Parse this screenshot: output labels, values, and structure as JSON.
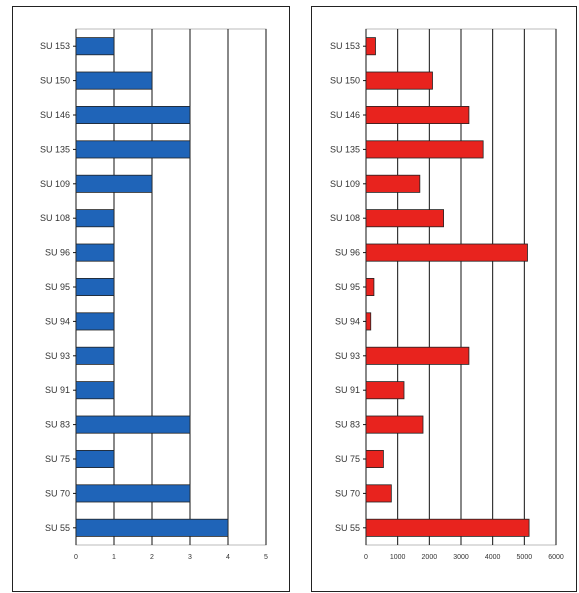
{
  "chart_data": [
    {
      "type": "bar",
      "orientation": "horizontal",
      "categories": [
        "SU 153",
        "SU 150",
        "SU 146",
        "SU 135",
        "SU 109",
        "SU 108",
        "SU 96",
        "SU 95",
        "SU 94",
        "SU 93",
        "SU 91",
        "SU 83",
        "SU 75",
        "SU 70",
        "SU 55"
      ],
      "values": [
        1,
        2,
        3,
        3,
        2,
        1,
        1,
        1,
        1,
        1,
        1,
        3,
        1,
        3,
        4
      ],
      "xlim": [
        0,
        5
      ],
      "xticks": [
        "0",
        "1",
        "2",
        "3",
        "4",
        "5"
      ],
      "color": "#1f64b8",
      "grid": true
    },
    {
      "type": "bar",
      "orientation": "horizontal",
      "categories": [
        "SU 153",
        "SU 150",
        "SU 146",
        "SU 135",
        "SU 109",
        "SU 108",
        "SU 96",
        "SU 95",
        "SU 94",
        "SU 93",
        "SU 91",
        "SU 83",
        "SU 75",
        "SU 70",
        "SU 55"
      ],
      "values": [
        300,
        2100,
        3250,
        3700,
        1700,
        2450,
        5100,
        250,
        150,
        3250,
        1200,
        1800,
        550,
        800,
        5150
      ],
      "xlim": [
        0,
        6000
      ],
      "xticks": [
        "0",
        "1000",
        "2000",
        "3000",
        "4000",
        "5000",
        "6000"
      ],
      "color": "#e8231e",
      "grid": true
    }
  ]
}
